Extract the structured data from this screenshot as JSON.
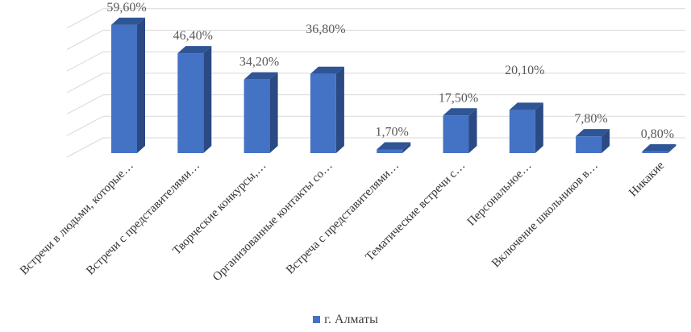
{
  "chart_data": {
    "type": "bar",
    "style": "3d-column",
    "bar_color": "#4472C4",
    "bar_top_color": "#2F5597",
    "bar_side_color": "#2B4A84",
    "gridline_color": "#D9D9D9",
    "text_color": "#595959",
    "categories": [
      "Встречи в людьми, которые…",
      "Встречи с представителями…",
      "Творческие конкурсы,…",
      "Организованные контакты со…",
      "Встреча с представителями…",
      "Тематические встречи с…",
      "Персональное…",
      "Включение школьников в…",
      "Никакие"
    ],
    "series": [
      {
        "name": "г. Алматы",
        "values": [
          59.6,
          46.4,
          34.2,
          36.8,
          1.7,
          17.5,
          20.1,
          7.8,
          0.8
        ]
      }
    ],
    "data_labels": [
      "59,60%",
      "46,40%",
      "34,20%",
      "36,80%",
      "1,70%",
      "17,50%",
      "20,10%",
      "7,80%",
      "0,80%"
    ],
    "ylim": [
      0,
      60
    ],
    "grid": true,
    "legend_position": "bottom"
  },
  "legend": {
    "label": "г. Алматы"
  }
}
